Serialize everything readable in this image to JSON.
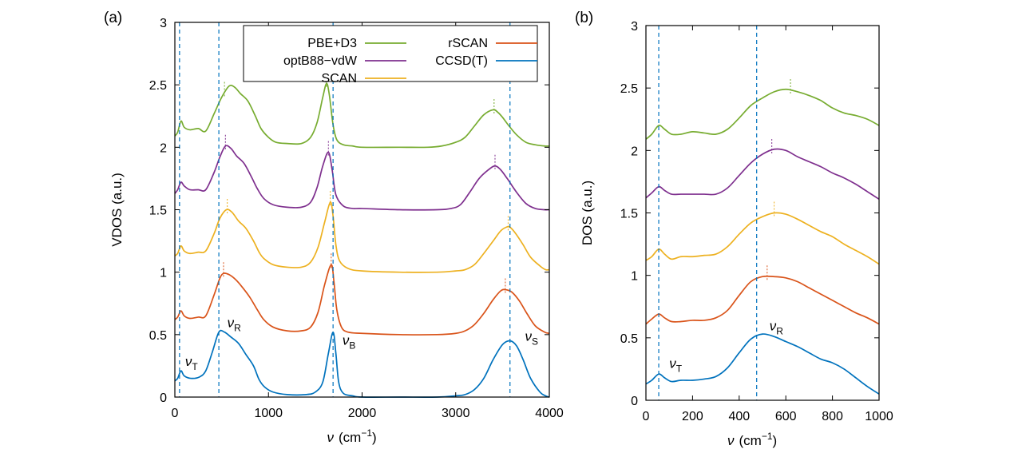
{
  "chart_data": [
    {
      "panel_label": "(a)",
      "type": "line",
      "xlabel_symbol": "ν",
      "xlabel_unit": "(cm",
      "xlabel_exp": "−1",
      "xlabel_close": ")",
      "ylabel": "VDOS (a.u.)",
      "xlim": [
        0,
        4000
      ],
      "ylim": [
        0,
        3
      ],
      "xticks": [
        "0",
        "1000",
        "2000",
        "3000",
        "4000"
      ],
      "yticks": [
        "0",
        "0.5",
        "1",
        "1.5",
        "2",
        "2.5",
        "3"
      ],
      "grid": false,
      "legend": {
        "position": "top-center",
        "items": [
          {
            "name": "PBE+D3",
            "color": "#77ac30"
          },
          {
            "name": "optB88−vdW",
            "color": "#7e2f8e"
          },
          {
            "name": "SCAN",
            "color": "#edb120"
          },
          {
            "name": "rSCAN",
            "color": "#d95319"
          },
          {
            "name": "CCSD(T)",
            "color": "#0072bd"
          }
        ]
      },
      "reference_lines_x": [
        50,
        470,
        1690,
        3580
      ],
      "annotations": [
        {
          "symbol": "ν",
          "sub": "T",
          "x": 110,
          "y": 0.25
        },
        {
          "symbol": "ν",
          "sub": "R",
          "x": 560,
          "y": 0.56
        },
        {
          "symbol": "ν",
          "sub": "B",
          "x": 1790,
          "y": 0.42
        },
        {
          "symbol": "ν",
          "sub": "S",
          "x": 3740,
          "y": 0.45
        }
      ],
      "peak_markers": [
        {
          "series": "PBE+D3",
          "x": [
            530,
            1620,
            3410
          ]
        },
        {
          "series": "optB88−vdW",
          "x": [
            540,
            1640,
            3420
          ]
        },
        {
          "series": "SCAN",
          "x": [
            560,
            1660,
            3560
          ]
        },
        {
          "series": "rSCAN",
          "x": [
            520,
            1670,
            3530
          ]
        }
      ],
      "series": [
        {
          "name": "PBE+D3",
          "color": "#77ac30",
          "x": [
            0,
            30,
            65,
            100,
            160,
            250,
            330,
            420,
            500,
            580,
            640,
            700,
            780,
            860,
            920,
            1000,
            1080,
            1200,
            1350,
            1450,
            1520,
            1580,
            1620,
            1650,
            1690,
            1730,
            1800,
            1900,
            2000,
            2400,
            2700,
            2850,
            3000,
            3100,
            3200,
            3300,
            3400,
            3450,
            3500,
            3560,
            3650,
            3750,
            3850,
            3950,
            4000
          ],
          "y": [
            2.09,
            2.12,
            2.21,
            2.16,
            2.14,
            2.15,
            2.13,
            2.27,
            2.4,
            2.49,
            2.48,
            2.43,
            2.37,
            2.25,
            2.15,
            2.08,
            2.04,
            2.03,
            2.03,
            2.08,
            2.2,
            2.4,
            2.51,
            2.42,
            2.18,
            2.06,
            2.02,
            2.01,
            2.0,
            2.0,
            2.0,
            2.01,
            2.04,
            2.08,
            2.17,
            2.26,
            2.3,
            2.28,
            2.24,
            2.18,
            2.1,
            2.04,
            2.02,
            2.01,
            2.01
          ]
        },
        {
          "name": "optB88−vdW",
          "color": "#7e2f8e",
          "x": [
            0,
            30,
            65,
            100,
            160,
            250,
            330,
            420,
            480,
            540,
            600,
            660,
            740,
            820,
            880,
            950,
            1050,
            1200,
            1350,
            1450,
            1520,
            1580,
            1640,
            1680,
            1720,
            1800,
            1900,
            2000,
            2400,
            2800,
            2950,
            3050,
            3150,
            3250,
            3350,
            3420,
            3480,
            3550,
            3650,
            3750,
            3850,
            3950,
            4000
          ],
          "y": [
            1.63,
            1.66,
            1.72,
            1.69,
            1.66,
            1.66,
            1.66,
            1.8,
            1.92,
            2.01,
            1.99,
            1.93,
            1.87,
            1.76,
            1.67,
            1.59,
            1.54,
            1.52,
            1.52,
            1.56,
            1.68,
            1.85,
            1.96,
            1.82,
            1.62,
            1.53,
            1.51,
            1.51,
            1.5,
            1.5,
            1.51,
            1.54,
            1.64,
            1.75,
            1.82,
            1.85,
            1.82,
            1.75,
            1.64,
            1.55,
            1.51,
            1.5,
            1.5
          ]
        },
        {
          "name": "SCAN",
          "color": "#edb120",
          "x": [
            0,
            30,
            65,
            100,
            160,
            250,
            330,
            420,
            480,
            550,
            610,
            680,
            760,
            840,
            900,
            950,
            1050,
            1200,
            1350,
            1450,
            1530,
            1600,
            1660,
            1690,
            1720,
            1760,
            1850,
            2000,
            2400,
            2800,
            3000,
            3100,
            3200,
            3300,
            3400,
            3480,
            3540,
            3580,
            3640,
            3720,
            3800,
            3900,
            3960,
            4000
          ],
          "y": [
            1.13,
            1.15,
            1.21,
            1.17,
            1.15,
            1.16,
            1.17,
            1.31,
            1.43,
            1.5,
            1.48,
            1.41,
            1.35,
            1.25,
            1.16,
            1.11,
            1.06,
            1.04,
            1.04,
            1.08,
            1.2,
            1.4,
            1.56,
            1.45,
            1.22,
            1.09,
            1.03,
            1.01,
            1.0,
            1.0,
            1.01,
            1.02,
            1.06,
            1.15,
            1.25,
            1.33,
            1.36,
            1.36,
            1.31,
            1.22,
            1.12,
            1.05,
            1.02,
            1.02
          ]
        },
        {
          "name": "rSCAN",
          "color": "#d95319",
          "x": [
            0,
            30,
            65,
            100,
            160,
            250,
            330,
            420,
            480,
            520,
            580,
            650,
            720,
            800,
            880,
            950,
            1050,
            1200,
            1350,
            1450,
            1530,
            1600,
            1670,
            1700,
            1730,
            1780,
            1850,
            2000,
            2400,
            2800,
            3000,
            3100,
            3200,
            3300,
            3400,
            3480,
            3530,
            3600,
            3680,
            3760,
            3850,
            3950,
            4000
          ],
          "y": [
            0.62,
            0.64,
            0.69,
            0.65,
            0.63,
            0.64,
            0.65,
            0.82,
            0.95,
            0.99,
            0.98,
            0.94,
            0.88,
            0.8,
            0.7,
            0.62,
            0.56,
            0.53,
            0.53,
            0.56,
            0.68,
            0.9,
            1.06,
            0.92,
            0.7,
            0.56,
            0.52,
            0.51,
            0.5,
            0.5,
            0.51,
            0.53,
            0.58,
            0.67,
            0.78,
            0.85,
            0.86,
            0.84,
            0.77,
            0.67,
            0.57,
            0.52,
            0.51
          ]
        },
        {
          "name": "CCSD(T)",
          "color": "#0072bd",
          "x": [
            0,
            30,
            65,
            100,
            170,
            260,
            330,
            400,
            470,
            530,
            600,
            680,
            760,
            840,
            900,
            960,
            1050,
            1200,
            1400,
            1500,
            1580,
            1640,
            1690,
            1720,
            1750,
            1800,
            1900,
            2000,
            2400,
            2800,
            3000,
            3100,
            3200,
            3300,
            3400,
            3500,
            3580,
            3650,
            3720,
            3800,
            3900,
            3960,
            4000
          ],
          "y": [
            0.13,
            0.15,
            0.21,
            0.17,
            0.15,
            0.16,
            0.21,
            0.36,
            0.52,
            0.52,
            0.48,
            0.43,
            0.34,
            0.25,
            0.14,
            0.08,
            0.04,
            0.02,
            0.02,
            0.04,
            0.12,
            0.35,
            0.52,
            0.35,
            0.12,
            0.03,
            0.01,
            0.0,
            0.0,
            0.0,
            0.01,
            0.02,
            0.06,
            0.15,
            0.3,
            0.42,
            0.45,
            0.41,
            0.3,
            0.15,
            0.04,
            0.01,
            0.0
          ]
        }
      ]
    },
    {
      "panel_label": "(b)",
      "type": "line",
      "xlabel_symbol": "ν",
      "xlabel_unit": "(cm",
      "xlabel_exp": "−1",
      "xlabel_close": ")",
      "ylabel": "DOS (a.u.)",
      "xlim": [
        0,
        1000
      ],
      "ylim": [
        0,
        3
      ],
      "xticks": [
        "0",
        "200",
        "400",
        "600",
        "800",
        "1000"
      ],
      "yticks": [
        "0",
        "0.5",
        "1",
        "1.5",
        "2",
        "2.5",
        "3"
      ],
      "grid": false,
      "reference_lines_x": [
        55,
        475
      ],
      "annotations": [
        {
          "symbol": "ν",
          "sub": "T",
          "x": 100,
          "y": 0.26
        },
        {
          "symbol": "ν",
          "sub": "R",
          "x": 530,
          "y": 0.56
        }
      ],
      "peak_markers": [
        {
          "series": "PBE+D3",
          "x": [
            620
          ]
        },
        {
          "series": "optB88−vdW",
          "x": [
            540
          ]
        },
        {
          "series": "SCAN",
          "x": [
            550
          ]
        },
        {
          "series": "rSCAN",
          "x": [
            520
          ]
        }
      ],
      "series": [
        {
          "name": "PBE+D3",
          "color": "#77ac30",
          "x": [
            0,
            25,
            55,
            80,
            110,
            150,
            200,
            250,
            300,
            350,
            400,
            450,
            500,
            550,
            600,
            650,
            700,
            750,
            800,
            850,
            900,
            950,
            1000
          ],
          "y": [
            2.09,
            2.13,
            2.2,
            2.17,
            2.13,
            2.13,
            2.15,
            2.14,
            2.13,
            2.17,
            2.26,
            2.36,
            2.42,
            2.47,
            2.49,
            2.47,
            2.44,
            2.4,
            2.34,
            2.3,
            2.28,
            2.25,
            2.2
          ]
        },
        {
          "name": "optB88−vdW",
          "color": "#7e2f8e",
          "x": [
            0,
            25,
            55,
            80,
            110,
            150,
            200,
            250,
            300,
            350,
            400,
            450,
            500,
            550,
            600,
            650,
            700,
            750,
            800,
            850,
            900,
            950,
            1000
          ],
          "y": [
            1.62,
            1.66,
            1.71,
            1.68,
            1.65,
            1.65,
            1.65,
            1.65,
            1.65,
            1.7,
            1.8,
            1.9,
            1.97,
            2.01,
            2.0,
            1.95,
            1.91,
            1.87,
            1.82,
            1.78,
            1.73,
            1.67,
            1.61
          ]
        },
        {
          "name": "SCAN",
          "color": "#edb120",
          "x": [
            0,
            25,
            55,
            80,
            110,
            150,
            200,
            250,
            300,
            350,
            400,
            450,
            500,
            550,
            600,
            650,
            700,
            750,
            800,
            850,
            900,
            950,
            1000
          ],
          "y": [
            1.12,
            1.15,
            1.21,
            1.17,
            1.13,
            1.15,
            1.15,
            1.16,
            1.17,
            1.23,
            1.33,
            1.42,
            1.47,
            1.5,
            1.49,
            1.45,
            1.4,
            1.35,
            1.31,
            1.25,
            1.2,
            1.15,
            1.09
          ]
        },
        {
          "name": "rSCAN",
          "color": "#d95319",
          "x": [
            0,
            25,
            55,
            80,
            110,
            150,
            200,
            250,
            300,
            350,
            400,
            450,
            500,
            550,
            600,
            650,
            700,
            750,
            800,
            850,
            900,
            950,
            1000
          ],
          "y": [
            0.61,
            0.65,
            0.69,
            0.66,
            0.63,
            0.63,
            0.64,
            0.64,
            0.66,
            0.72,
            0.84,
            0.95,
            0.99,
            0.99,
            0.98,
            0.95,
            0.9,
            0.85,
            0.8,
            0.75,
            0.7,
            0.66,
            0.61
          ]
        },
        {
          "name": "CCSD(T)",
          "color": "#0072bd",
          "x": [
            0,
            25,
            55,
            80,
            110,
            150,
            200,
            250,
            300,
            350,
            400,
            450,
            500,
            550,
            600,
            650,
            700,
            750,
            800,
            850,
            900,
            950,
            1000
          ],
          "y": [
            0.13,
            0.16,
            0.21,
            0.18,
            0.15,
            0.16,
            0.16,
            0.17,
            0.19,
            0.26,
            0.38,
            0.49,
            0.53,
            0.51,
            0.47,
            0.43,
            0.38,
            0.33,
            0.3,
            0.25,
            0.18,
            0.11,
            0.05
          ]
        }
      ]
    }
  ]
}
